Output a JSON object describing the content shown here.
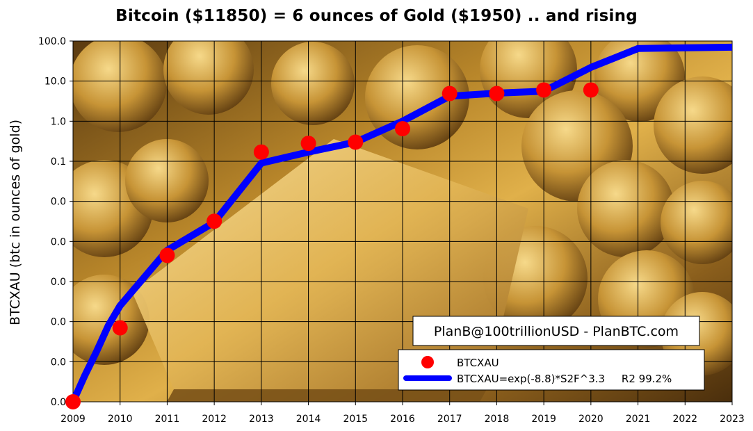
{
  "chart_data": {
    "type": "line",
    "title": "Bitcoin ($11850) = 6 ounces of Gold ($1950) .. and rising",
    "ylabel": "BTCXAU (btc in ounces of gold)",
    "xlabel": "",
    "x_ticks": [
      "2009",
      "2010",
      "2011",
      "2012",
      "2013",
      "2014",
      "2015",
      "2016",
      "2017",
      "2018",
      "2019",
      "2020",
      "2021",
      "2022",
      "2023"
    ],
    "y_ticks": [
      "0.0",
      "0.0",
      "0.0",
      "0.0",
      "0.0",
      "0.0",
      "0.1",
      "1.0",
      "10.0",
      "100.0"
    ],
    "y_scale": "log",
    "y_tick_values": [
      1e-07,
      1e-06,
      1e-05,
      0.0001,
      0.001,
      0.01,
      0.1,
      1,
      10,
      100
    ],
    "xlim": [
      2009,
      2023
    ],
    "ylim": [
      1e-07,
      100
    ],
    "grid": true,
    "legend_position": "bottom-right",
    "background": "gold bars and coins photograph",
    "series": [
      {
        "name": "BTCXAU",
        "kind": "scatter",
        "color": "#ff0000",
        "x": [
          2009,
          2010,
          2011,
          2012,
          2013,
          2014,
          2015,
          2016,
          2017,
          2018,
          2019,
          2020
        ],
        "y": [
          1e-07,
          7e-06,
          0.00045,
          0.0032,
          0.17,
          0.28,
          0.3,
          0.65,
          4.9,
          4.9,
          6.0,
          6.0
        ]
      },
      {
        "name": "BTCXAU=exp(-8.8)*S2F^3.3     R2 99.2%",
        "kind": "line",
        "color": "#0000ff",
        "x": [
          2009,
          2009.25,
          2009.5,
          2009.75,
          2010,
          2011,
          2012,
          2013,
          2014,
          2015,
          2016,
          2017,
          2018,
          2019,
          2020,
          2021,
          2022,
          2023
        ],
        "y": [
          1e-07,
          4.5e-07,
          1.8e-06,
          8e-06,
          2.5e-05,
          0.0006,
          0.003,
          0.09,
          0.17,
          0.3,
          1.0,
          4.2,
          5.0,
          5.6,
          22,
          65,
          68,
          70
        ]
      }
    ],
    "annotations": [
      "PlanB@100trillionUSD  -  PlanBTC.com"
    ]
  }
}
